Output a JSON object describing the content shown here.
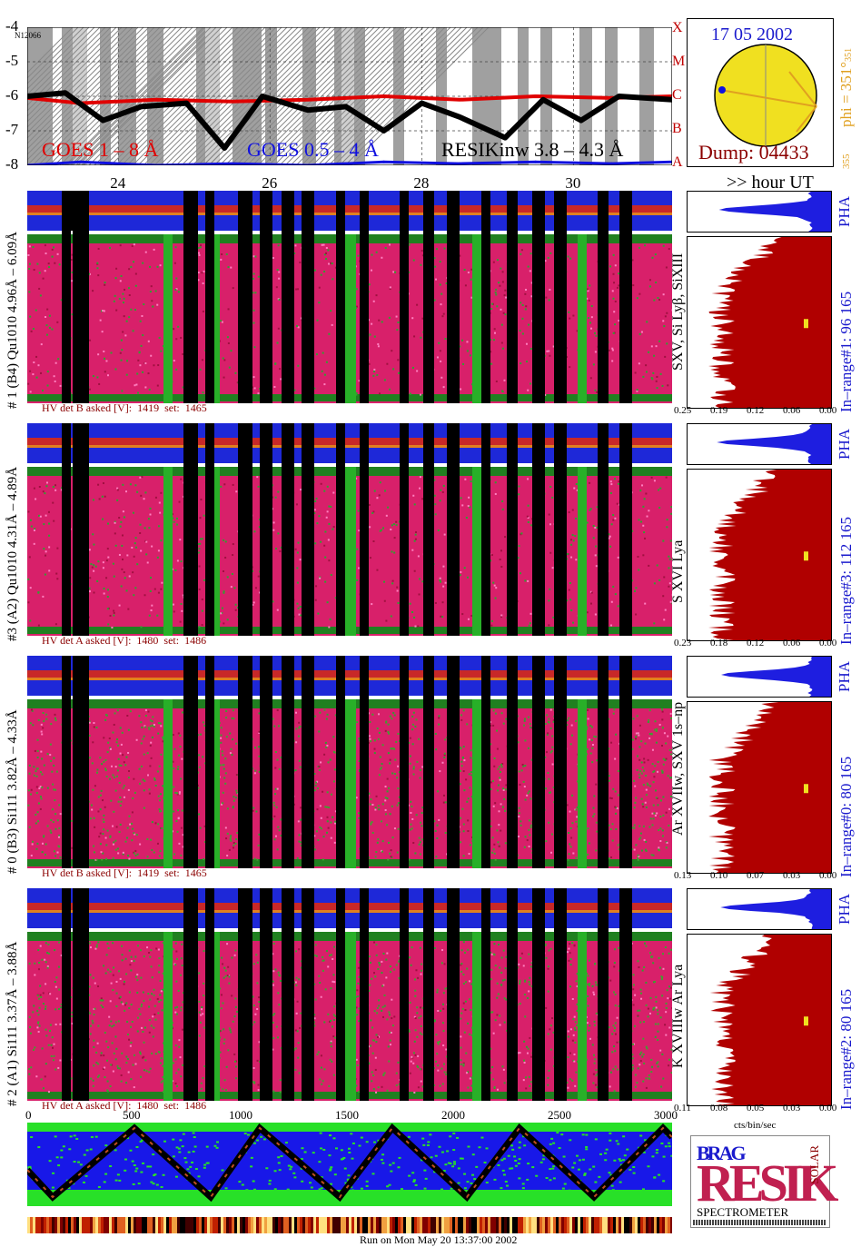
{
  "goes": {
    "y_ticks": [
      "-4",
      "-5",
      "-6",
      "-7",
      "-8"
    ],
    "flare_classes": [
      "X",
      "M",
      "C",
      "B",
      "A"
    ],
    "label_1_8": "GOES 1 – 8 Å",
    "label_05_4": "GOES 0.5 – 4 Å",
    "label_resik": "RESIKinw 3.8 – 4.3 Å",
    "corner_tag": "N12066"
  },
  "time_axis": {
    "ticks": [
      "24",
      "26",
      "28",
      "30"
    ],
    "unit_label": ">> hour UT"
  },
  "sun": {
    "date": "17 05 2002",
    "dump": "Dump: 04433",
    "phi": "phi = 351°",
    "phi_sub": "351",
    "side_num": "355"
  },
  "channels": [
    {
      "left_label": "# 1 (B4) Qu1010 4.96Å – 6.09Å",
      "lines": "SXV, Si Lyβ, SiXIII",
      "hv": "HV det B asked [V]:  1419  set:  1465",
      "range": "In–range#1:   96 165",
      "x_ticks": [
        "0.25",
        "0.19",
        "0.12",
        "0.06",
        "0.00"
      ],
      "pha": "PHA"
    },
    {
      "left_label": "#3 (A2) Qu1010  4.31Å – 4.89Å",
      "lines": "S XVI Lya",
      "hv": "HV det A asked [V]:  1480  set:  1486",
      "range": "In–range#3:   112 165",
      "x_ticks": [
        "0.23",
        "0.18",
        "0.12",
        "0.06",
        "0.00"
      ],
      "pha": "PHA"
    },
    {
      "left_label": "# 0 (B3) Si111  3.82Å – 4.33Å",
      "lines": "Ar XVIIw,  SXV 1s–np",
      "hv": "HV det B asked [V]:  1419  set:  1465",
      "range": "In–range#0:   80 165",
      "x_ticks": [
        "0.13",
        "0.10",
        "0.07",
        "0.03",
        "0.00"
      ],
      "pha": "PHA"
    },
    {
      "left_label": "# 2 (A1) Si111  3.37Å – 3.88Å",
      "lines": "K XVIIIw  Ar Lya",
      "hv": "HV det A asked [V]:  1480  set:  1486",
      "range": "In–range#2:   80 165",
      "x_ticks": [
        "0.11",
        "0.08",
        "0.05",
        "0.03",
        "0.00"
      ],
      "pha": "PHA"
    }
  ],
  "bottom_axis": {
    "ticks": [
      "0",
      "500",
      "1000",
      "1500",
      "2000",
      "2500",
      "3000"
    ],
    "unit": "cts/bin/sec"
  },
  "logo": {
    "top": "BRAG",
    "main": "RESIK",
    "side": "SOLAR",
    "bottom": "SPECTROMETER"
  },
  "footer": "Run on Mon May 20 13:37:00 2002",
  "colors": {
    "goes_red": "#e00000",
    "goes_blue": "#1010e0",
    "spectrum_red": "#b00000",
    "pha_blue": "#1e1ee0",
    "label_blue": "#1a1acd",
    "phi_orange": "#e0a020",
    "sun_yellow": "#f0e020"
  },
  "chart_data": {
    "type": "line",
    "title": "",
    "xlabel": ">> hour UT",
    "ylabel": "",
    "xlim": [
      22.8,
      31.3
    ],
    "ylim": [
      -8,
      -4
    ],
    "x_ticks": [
      24,
      26,
      28,
      30
    ],
    "y_ticks": [
      -4,
      -5,
      -6,
      -7,
      -8
    ],
    "series": [
      {
        "name": "GOES 1 – 8 Å",
        "x": [
          22.8,
          23.5,
          24.5,
          25.5,
          26.5,
          27.5,
          28.5,
          29.5,
          30.5,
          31.3
        ],
        "values": [
          -6.05,
          -6.2,
          -6.1,
          -6.15,
          -6.1,
          -6.0,
          -6.1,
          -6.0,
          -6.05,
          -6.0
        ]
      },
      {
        "name": "GOES 0.5 – 4 Å",
        "x": [
          22.8,
          23.5,
          24.5,
          25.5,
          26.5,
          27.5,
          28.5,
          29.5,
          30.5,
          31.3
        ],
        "values": [
          -8.0,
          -7.9,
          -8.0,
          -7.95,
          -8.0,
          -7.9,
          -7.95,
          -7.9,
          -7.95,
          -7.9
        ]
      },
      {
        "name": "RESIKinw 3.8 – 4.3 Å",
        "x": [
          22.8,
          23.3,
          23.8,
          24.3,
          24.9,
          25.4,
          25.9,
          26.5,
          27.0,
          27.5,
          28.0,
          28.5,
          29.1,
          29.6,
          30.1,
          30.6,
          31.3
        ],
        "values": [
          -6.0,
          -5.9,
          -6.7,
          -6.3,
          -6.2,
          -7.5,
          -6.0,
          -6.4,
          -6.3,
          -7.0,
          -6.2,
          -6.6,
          -7.2,
          -6.1,
          -6.7,
          -6.0,
          -6.1
        ]
      }
    ]
  }
}
